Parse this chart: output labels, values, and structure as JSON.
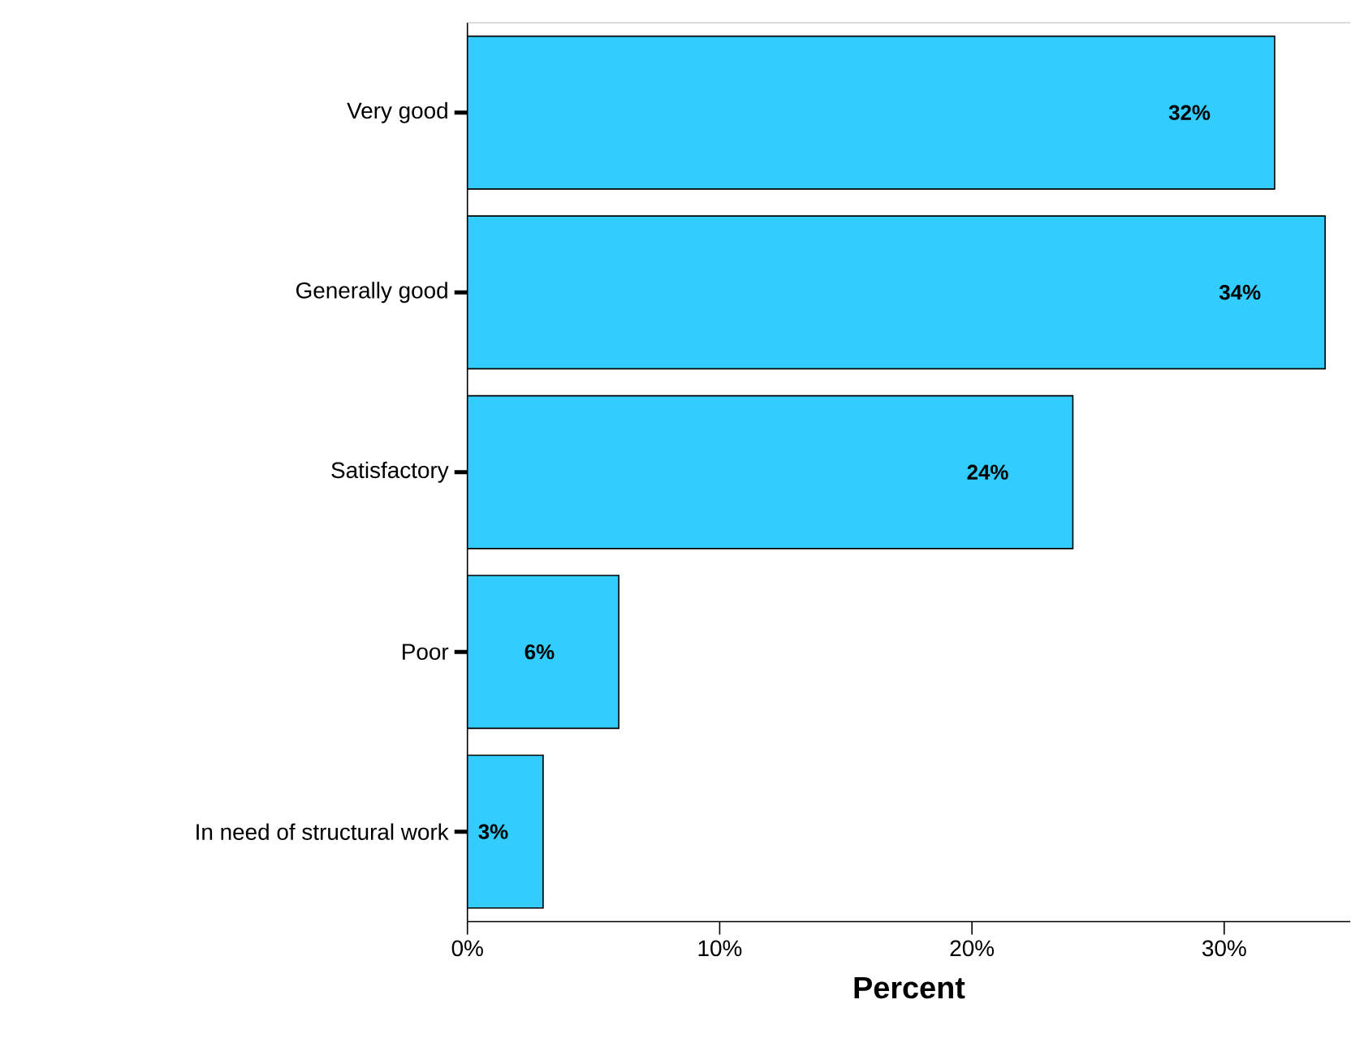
{
  "chart_data": {
    "type": "bar",
    "orientation": "horizontal",
    "xlabel": "Percent",
    "categories": [
      "Very good",
      "Generally good",
      "Satisfactory",
      "Poor",
      "In need of structural work"
    ],
    "values": [
      32,
      34,
      24,
      6,
      3
    ],
    "value_labels": [
      "32%",
      "34%",
      "24%",
      "6%",
      "3%"
    ],
    "color": "#33ccff",
    "xlim": [
      0,
      35
    ],
    "xticks": [
      {
        "value": 0,
        "label": "0%"
      },
      {
        "value": 10,
        "label": "10%"
      },
      {
        "value": 20,
        "label": "20%"
      },
      {
        "value": 30,
        "label": "30%"
      }
    ],
    "grid": false
  }
}
